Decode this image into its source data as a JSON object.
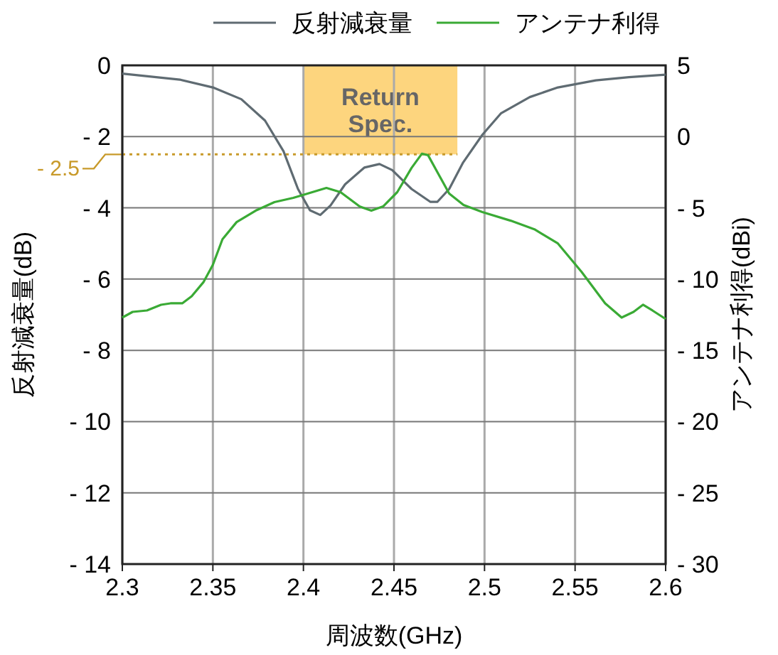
{
  "chart_data": {
    "type": "line",
    "xlabel": "周波数(GHz)",
    "ylabel": "反射減衰量(dB)",
    "y2label": "アンテナ利得(dBi)",
    "series": [
      {
        "name": "反射減衰量",
        "color": "#5f6b72",
        "x": [
          2.3,
          2.3318,
          2.35,
          2.3657,
          2.3788,
          2.389,
          2.397,
          2.4036,
          2.4093,
          2.415,
          2.423,
          2.4336,
          2.442,
          2.449,
          2.4597,
          2.47,
          2.474,
          2.4805,
          2.488,
          2.4988,
          2.509,
          2.525,
          2.5405,
          2.5614,
          2.5797,
          2.6
        ],
        "values": [
          -0.23,
          -0.4,
          -0.62,
          -0.95,
          -1.55,
          -2.41,
          -3.47,
          -4.07,
          -4.2,
          -3.93,
          -3.34,
          -2.87,
          -2.77,
          -2.94,
          -3.47,
          -3.83,
          -3.83,
          -3.47,
          -2.74,
          -1.95,
          -1.35,
          -0.89,
          -0.62,
          -0.42,
          -0.33,
          -0.26
        ]
      },
      {
        "name": "アンテナ利得",
        "color": "#3aaa35",
        "axis": "y2",
        "x": [
          2.3,
          2.3057,
          2.3136,
          2.3214,
          2.3266,
          2.3331,
          2.3383,
          2.3449,
          2.35,
          2.3553,
          2.3631,
          2.3736,
          2.384,
          2.3944,
          2.4023,
          2.4127,
          2.4205,
          2.431,
          2.4375,
          2.444,
          2.4518,
          2.4597,
          2.4654,
          2.4688,
          2.474,
          2.4805,
          2.4884,
          2.4988,
          2.5144,
          2.5275,
          2.5405,
          2.5536,
          2.5666,
          2.5757,
          2.5823,
          2.5875,
          2.5927,
          2.6
        ],
        "values": [
          -12.7,
          -12.3,
          -12.2,
          -11.8,
          -11.7,
          -11.7,
          -11.2,
          -10.2,
          -9.0,
          -7.2,
          -6.0,
          -5.2,
          -4.6,
          -4.3,
          -4.0,
          -3.6,
          -3.9,
          -4.9,
          -5.2,
          -4.9,
          -3.9,
          -2.2,
          -1.2,
          -1.3,
          -2.5,
          -4.0,
          -4.8,
          -5.3,
          -5.9,
          -6.5,
          -7.5,
          -9.5,
          -11.7,
          -12.7,
          -12.3,
          -11.8,
          -12.2,
          -12.8
        ]
      }
    ],
    "xlim": [
      2.3,
      2.6
    ],
    "xticks": [
      2.3,
      2.35,
      2.4,
      2.45,
      2.5,
      2.55,
      2.6
    ],
    "ylim": [
      -14,
      0
    ],
    "yticks": [
      0,
      {
        "value": -2,
        "label": "- 2"
      },
      {
        "value": -4,
        "label": "- 4"
      },
      {
        "value": -6,
        "label": "- 6"
      },
      {
        "value": -8,
        "label": "- 8"
      },
      {
        "value": -10,
        "label": "- 10"
      },
      {
        "value": -12,
        "label": "- 12"
      },
      {
        "value": -14,
        "label": "- 14"
      }
    ],
    "y2lim": [
      -30,
      5
    ],
    "y2ticks": [
      5,
      0,
      {
        "value": -5,
        "label": "- 5"
      },
      {
        "value": -10,
        "label": "- 10"
      },
      {
        "value": -15,
        "label": "- 15"
      },
      {
        "value": -20,
        "label": "- 20"
      },
      {
        "value": -25,
        "label": "- 25"
      },
      {
        "value": -30,
        "label": "- 30"
      }
    ],
    "bands": [
      {
        "axis": "x",
        "from": 2.4,
        "to": 2.485,
        "label": "Return Spec.",
        "color": "#fdd57e"
      }
    ],
    "ref_lines": [
      {
        "axis": "y",
        "value": -2.5,
        "label": "- 2.5",
        "color": "#c89a2a",
        "line_style": "dotted"
      }
    ],
    "grid": true,
    "legend": "top"
  }
}
